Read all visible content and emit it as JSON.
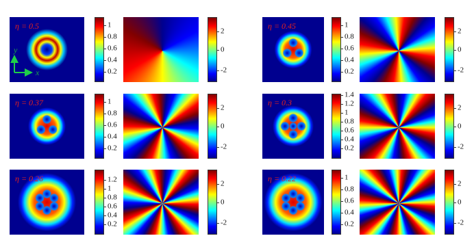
{
  "panels": [
    {
      "eta": "η = 0.5",
      "density_ticks": [
        "1",
        "0.8",
        "0.6",
        "0.4",
        "0.2"
      ],
      "phase_ticks": [
        "2",
        "0",
        "-2"
      ]
    },
    {
      "eta": "η = 0.45",
      "density_ticks": [
        "1",
        "0.8",
        "0.6",
        "0.4",
        "0.2"
      ],
      "phase_ticks": [
        "2",
        "0",
        "-2"
      ]
    },
    {
      "eta": "η = 0.37",
      "density_ticks": [
        "1",
        "0.8",
        "0.6",
        "0.4",
        "0.2"
      ],
      "phase_ticks": [
        "2",
        "0",
        "-2"
      ]
    },
    {
      "eta": "η = 0.3",
      "density_ticks": [
        "1.4",
        "1.2",
        "1",
        "0.8",
        "0.6",
        "0.4",
        "0.2"
      ],
      "phase_ticks": [
        "2",
        "0",
        "-2"
      ]
    },
    {
      "eta": "η = 0.26",
      "density_ticks": [
        "1.2",
        "1",
        "0.8",
        "0.6",
        "0.4",
        "0.2"
      ],
      "phase_ticks": [
        "2",
        "0",
        "-2"
      ]
    },
    {
      "eta": "η = 0.22",
      "density_ticks": [
        "1",
        "0.8",
        "0.6",
        "0.4",
        "0.2"
      ],
      "phase_ticks": [
        "2",
        "0",
        "-2"
      ]
    }
  ],
  "axis_labels": {
    "y": "y",
    "x": "x"
  }
}
